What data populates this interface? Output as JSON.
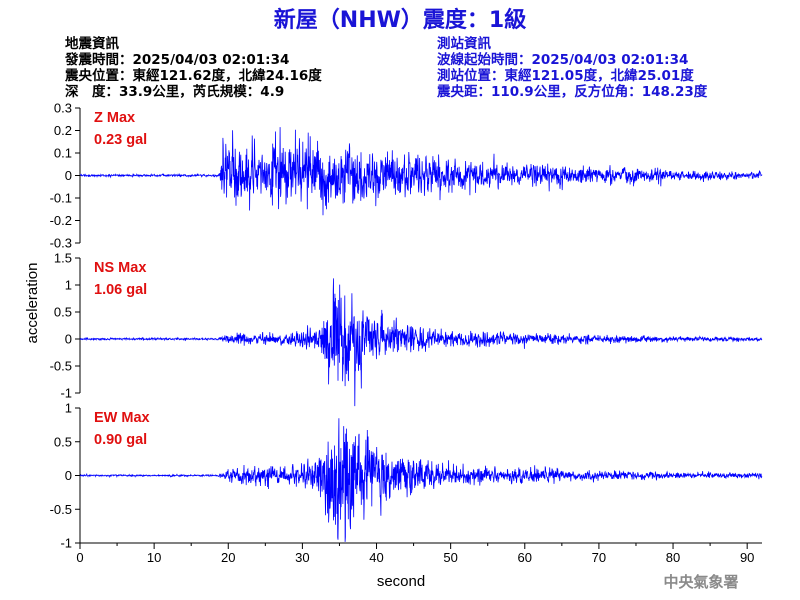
{
  "title": "新屋（NHW）震度：1級",
  "left_info": [
    "地震資訊",
    "發震時間：2025/04/03 02:01:34",
    "震央位置：東經121.62度，北緯24.16度",
    "深　度：33.9公里，芮氏規模：4.9"
  ],
  "right_info": [
    "測站資訊",
    "波線起始時間：2025/04/03 02:01:34",
    "測站位置：東經121.05度，北緯25.01度",
    "震央距：110.9公里，反方位角：148.23度"
  ],
  "footer": "中央氣象署",
  "colors": {
    "title": "#1a14d6",
    "trace": "#0000ff",
    "max_label": "#e01010",
    "right_info": "#1a14d6"
  },
  "chart_data": {
    "type": "line",
    "xlabel": "second",
    "ylabel": "acceleration",
    "xlim": [
      0,
      92
    ],
    "x_ticks": [
      "0",
      "10",
      "20",
      "30",
      "40",
      "50",
      "60",
      "70",
      "80",
      "90"
    ],
    "panels": [
      {
        "component": "Z",
        "max_label": "Z Max",
        "max_value": "0.23 gal",
        "ylim": [
          -0.3,
          0.3
        ],
        "y_ticks": [
          "0.3",
          "0.2",
          "0.1",
          "0",
          "-0.1",
          "-0.2",
          "-0.3"
        ],
        "envelope": [
          [
            0,
            0.004
          ],
          [
            18.8,
            0.004
          ],
          [
            19.3,
            0.16
          ],
          [
            20,
            0.14
          ],
          [
            24,
            0.1
          ],
          [
            26,
            0.12
          ],
          [
            30,
            0.12
          ],
          [
            33,
            0.12
          ],
          [
            36,
            0.13
          ],
          [
            38,
            0.11
          ],
          [
            40,
            0.1
          ],
          [
            45,
            0.08
          ],
          [
            50,
            0.06
          ],
          [
            55,
            0.05
          ],
          [
            60,
            0.04
          ],
          [
            66,
            0.035
          ],
          [
            72,
            0.03
          ],
          [
            80,
            0.02
          ],
          [
            86,
            0.015
          ],
          [
            92,
            0.012
          ]
        ]
      },
      {
        "component": "NS",
        "max_label": "NS Max",
        "max_value": "1.06 gal",
        "ylim": [
          -1,
          1.5
        ],
        "y_ticks": [
          "1.5",
          "1",
          "0.5",
          "0",
          "-0.5",
          "-1"
        ],
        "envelope": [
          [
            0,
            0.015
          ],
          [
            18.5,
            0.015
          ],
          [
            19.5,
            0.06
          ],
          [
            22,
            0.09
          ],
          [
            26,
            0.1
          ],
          [
            30,
            0.13
          ],
          [
            32,
            0.2
          ],
          [
            33,
            0.55
          ],
          [
            34.5,
            0.9
          ],
          [
            36,
            0.7
          ],
          [
            38,
            0.5
          ],
          [
            40,
            0.35
          ],
          [
            43,
            0.25
          ],
          [
            48,
            0.15
          ],
          [
            52,
            0.12
          ],
          [
            58,
            0.1
          ],
          [
            65,
            0.07
          ],
          [
            72,
            0.06
          ],
          [
            80,
            0.04
          ],
          [
            88,
            0.035
          ],
          [
            92,
            0.03
          ]
        ]
      },
      {
        "component": "EW",
        "max_label": "EW Max",
        "max_value": "0.90 gal",
        "ylim": [
          -1,
          1
        ],
        "y_ticks": [
          "1",
          "0.5",
          "0",
          "-0.5",
          "-1"
        ],
        "envelope": [
          [
            0,
            0.01
          ],
          [
            18.5,
            0.01
          ],
          [
            19.5,
            0.05
          ],
          [
            22,
            0.1
          ],
          [
            26,
            0.13
          ],
          [
            30,
            0.12
          ],
          [
            32,
            0.2
          ],
          [
            33,
            0.55
          ],
          [
            35,
            0.75
          ],
          [
            37,
            0.65
          ],
          [
            39,
            0.5
          ],
          [
            41,
            0.35
          ],
          [
            44,
            0.25
          ],
          [
            48,
            0.16
          ],
          [
            52,
            0.12
          ],
          [
            58,
            0.1
          ],
          [
            65,
            0.07
          ],
          [
            72,
            0.05
          ],
          [
            80,
            0.04
          ],
          [
            88,
            0.035
          ],
          [
            92,
            0.03
          ]
        ]
      }
    ]
  }
}
